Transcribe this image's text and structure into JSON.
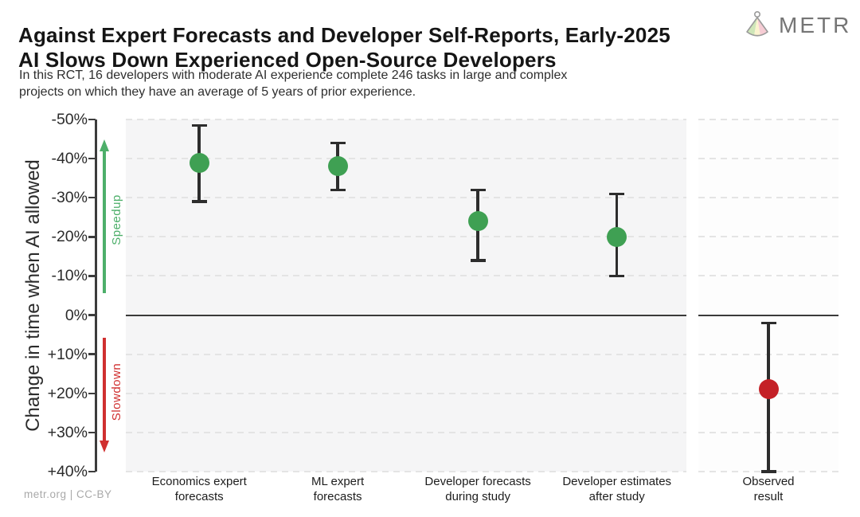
{
  "header": {
    "title_line1": "Against Expert Forecasts and Developer Self-Reports, Early-2025",
    "title_line2": "AI Slows Down Experienced Open-Source Developers",
    "subtitle_line1": "In this RCT, 16 developers with moderate AI experience complete 246 tasks in large and complex",
    "subtitle_line2": "projects on which they have an average of 5 years of prior experience."
  },
  "logo": {
    "text": "METR"
  },
  "footer": {
    "credit": "metr.org  |  CC-BY"
  },
  "chart_data": {
    "type": "scatter",
    "subtype": "point-estimates-with-95pct-CI-error-bars",
    "ylabel": "Change in time when AI allowed",
    "y_axis": {
      "min_pct": -50,
      "max_pct": 40,
      "orientation": "negative (speedup) at top, positive (slowdown) at bottom",
      "tick_labels": [
        "-50%",
        "-40%",
        "-30%",
        "-20%",
        "-10%",
        "0%",
        "+10%",
        "+20%",
        "+30%",
        "+40%"
      ],
      "tick_values": [
        -50,
        -40,
        -30,
        -20,
        -10,
        0,
        10,
        20,
        30,
        40
      ],
      "grid": "horizontal dashed lines, solid dark line at 0%"
    },
    "annotations": {
      "speedup": {
        "label": "Speedup",
        "color": "#4daf6a",
        "direction": "up",
        "span_pct": [
          -43,
          -6
        ]
      },
      "slowdown": {
        "label": "Slowdown",
        "color": "#d03030",
        "direction": "down",
        "span_pct": [
          6,
          33
        ]
      }
    },
    "panels": [
      {
        "name": "forecasts",
        "background": "#f5f5f6",
        "points": [
          {
            "label_line1": "Economics expert",
            "label_line2": "forecasts",
            "value_pct": -39,
            "ci_pct": [
              -48.5,
              -29
            ],
            "color": "#3fa053",
            "x_frac": 0.131
          },
          {
            "label_line1": "ML expert",
            "label_line2": "forecasts",
            "value_pct": -38,
            "ci_pct": [
              -44,
              -32
            ],
            "color": "#3fa053",
            "x_frac": 0.378
          },
          {
            "label_line1": "Developer forecasts",
            "label_line2": "during study",
            "value_pct": -24,
            "ci_pct": [
              -32,
              -14
            ],
            "color": "#3fa053",
            "x_frac": 0.628
          },
          {
            "label_line1": "Developer estimates",
            "label_line2": "after study",
            "value_pct": -20,
            "ci_pct": [
              -31,
              -10
            ],
            "color": "#3fa053",
            "x_frac": 0.876
          }
        ]
      },
      {
        "name": "observed",
        "background": "#fdfdfd",
        "points": [
          {
            "label_line1": "Observed",
            "label_line2": "result",
            "value_pct": 19,
            "ci_pct": [
              2,
              40
            ],
            "color": "#c42127",
            "x_frac": 0.5
          }
        ]
      }
    ]
  }
}
